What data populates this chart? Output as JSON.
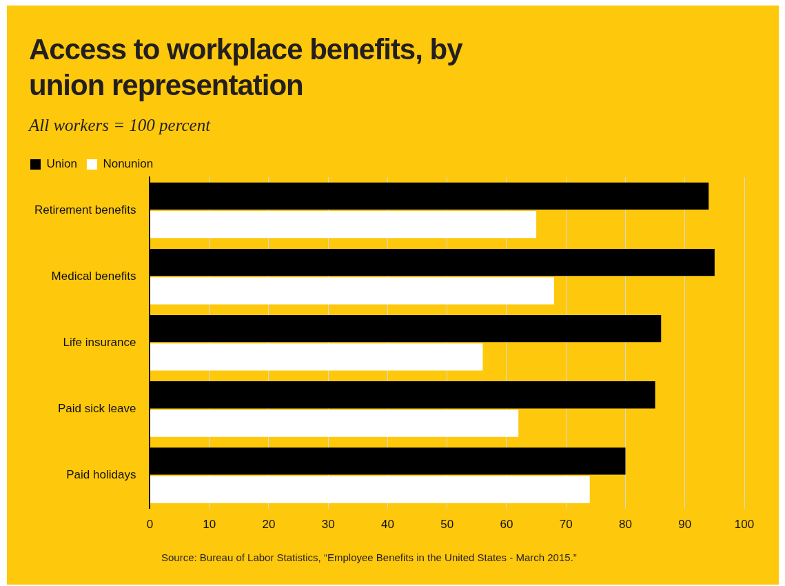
{
  "chart_data": {
    "type": "bar",
    "orientation": "horizontal",
    "title": "Access to workplace benefits, by union representation",
    "subtitle": "All workers = 100 percent",
    "categories": [
      "Retirement benefits",
      "Medical benefits",
      "Life insurance",
      "Paid sick leave",
      "Paid holidays"
    ],
    "series": [
      {
        "name": "Union",
        "color": "#000000",
        "values": [
          94,
          95,
          86,
          85,
          80
        ]
      },
      {
        "name": "Nonunion",
        "color": "#ffffff",
        "values": [
          65,
          68,
          56,
          62,
          74
        ]
      }
    ],
    "xlim": [
      0,
      100
    ],
    "xticks": [
      0,
      10,
      20,
      30,
      40,
      50,
      60,
      70,
      80,
      90,
      100
    ],
    "grid": "x",
    "legend": "top left",
    "annotations": [
      "Source: Bureau of Labor Statistics, “Employee Benefits in the United States - March 2015.”"
    ]
  }
}
